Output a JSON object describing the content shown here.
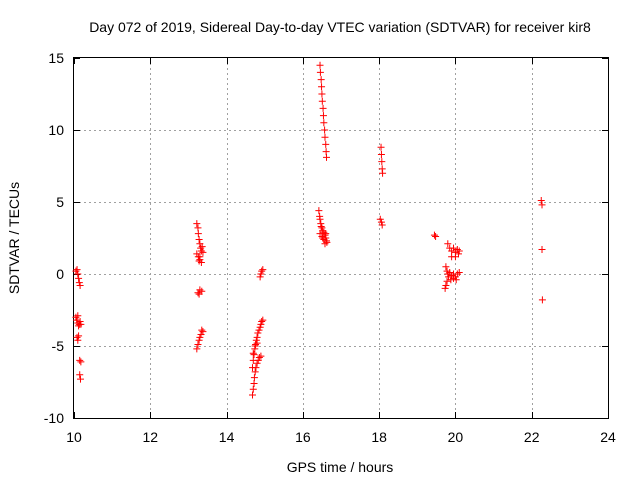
{
  "chart_data": {
    "type": "scatter",
    "title": "Day 072 of 2019, Sidereal Day-to-day VTEC variation (SDTVAR) for receiver kir8",
    "xlabel": "GPS time / hours",
    "ylabel": "SDTVAR / TECUs",
    "xlim": [
      10,
      24
    ],
    "ylim": [
      -10,
      15
    ],
    "xticks": [
      10,
      12,
      14,
      16,
      18,
      20,
      22,
      24
    ],
    "yticks": [
      -10,
      -5,
      0,
      5,
      10,
      15
    ],
    "xtick_labels": [
      "10",
      "12",
      "14",
      "16",
      "18",
      "20",
      "22",
      "24"
    ],
    "ytick_labels": [
      "-10",
      "-5",
      "0",
      "5",
      "10",
      "15"
    ],
    "grid": true,
    "marker": "+",
    "color": "#ff0000",
    "series": [
      {
        "name": "SDTVAR",
        "points": [
          [
            10.05,
            0.2
          ],
          [
            10.08,
            0.3
          ],
          [
            10.1,
            0.0
          ],
          [
            10.12,
            -0.3
          ],
          [
            10.14,
            -0.6
          ],
          [
            10.16,
            -0.8
          ],
          [
            10.05,
            -3.0
          ],
          [
            10.07,
            -3.2
          ],
          [
            10.1,
            -3.4
          ],
          [
            10.12,
            -3.6
          ],
          [
            10.14,
            -3.5
          ],
          [
            10.16,
            -3.3
          ],
          [
            10.18,
            -3.5
          ],
          [
            10.1,
            -2.9
          ],
          [
            10.08,
            -4.4
          ],
          [
            10.1,
            -4.6
          ],
          [
            10.12,
            -4.3
          ],
          [
            10.15,
            -6.0
          ],
          [
            10.18,
            -6.1
          ],
          [
            10.15,
            -7.0
          ],
          [
            10.17,
            -7.3
          ],
          [
            13.22,
            3.5
          ],
          [
            13.25,
            3.2
          ],
          [
            13.26,
            2.8
          ],
          [
            13.28,
            2.4
          ],
          [
            13.3,
            2.1
          ],
          [
            13.32,
            1.8
          ],
          [
            13.34,
            1.6
          ],
          [
            13.36,
            1.9
          ],
          [
            13.38,
            1.5
          ],
          [
            13.3,
            1.2
          ],
          [
            13.22,
            1.4
          ],
          [
            13.26,
            1.2
          ],
          [
            13.3,
            1.0
          ],
          [
            13.34,
            0.8
          ],
          [
            13.28,
            0.9
          ],
          [
            13.25,
            -1.3
          ],
          [
            13.3,
            -1.1
          ],
          [
            13.35,
            -1.2
          ],
          [
            13.28,
            -1.4
          ],
          [
            13.22,
            -5.2
          ],
          [
            13.25,
            -4.9
          ],
          [
            13.28,
            -4.6
          ],
          [
            13.3,
            -4.4
          ],
          [
            13.33,
            -4.2
          ],
          [
            13.35,
            -3.9
          ],
          [
            13.38,
            -4.0
          ],
          [
            14.68,
            -8.4
          ],
          [
            14.7,
            -8.0
          ],
          [
            14.72,
            -7.6
          ],
          [
            14.73,
            -7.2
          ],
          [
            14.75,
            -6.8
          ],
          [
            14.77,
            -6.5
          ],
          [
            14.8,
            -6.2
          ],
          [
            14.83,
            -6.0
          ],
          [
            14.86,
            -5.8
          ],
          [
            14.9,
            -5.7
          ],
          [
            14.68,
            -6.5
          ],
          [
            14.7,
            -6.0
          ],
          [
            14.72,
            -5.6
          ],
          [
            14.74,
            -5.2
          ],
          [
            14.76,
            -4.9
          ],
          [
            14.78,
            -4.6
          ],
          [
            14.8,
            -4.4
          ],
          [
            14.82,
            -4.1
          ],
          [
            14.85,
            -3.9
          ],
          [
            14.88,
            -3.7
          ],
          [
            14.9,
            -3.5
          ],
          [
            14.92,
            -3.3
          ],
          [
            14.95,
            -3.2
          ],
          [
            14.7,
            -5.5
          ],
          [
            14.75,
            -5.0
          ],
          [
            14.8,
            -4.8
          ],
          [
            14.88,
            -0.2
          ],
          [
            14.9,
            0.0
          ],
          [
            14.92,
            0.2
          ],
          [
            14.95,
            0.3
          ],
          [
            16.45,
            14.5
          ],
          [
            16.46,
            14.0
          ],
          [
            16.48,
            13.5
          ],
          [
            16.49,
            13.0
          ],
          [
            16.5,
            12.5
          ],
          [
            16.51,
            12.0
          ],
          [
            16.53,
            11.5
          ],
          [
            16.54,
            11.0
          ],
          [
            16.55,
            10.5
          ],
          [
            16.57,
            10.0
          ],
          [
            16.58,
            9.5
          ],
          [
            16.6,
            9.0
          ],
          [
            16.61,
            8.5
          ],
          [
            16.62,
            8.1
          ],
          [
            16.42,
            4.4
          ],
          [
            16.44,
            4.0
          ],
          [
            16.45,
            3.8
          ],
          [
            16.47,
            3.5
          ],
          [
            16.48,
            3.3
          ],
          [
            16.5,
            3.2
          ],
          [
            16.52,
            3.0
          ],
          [
            16.55,
            2.9
          ],
          [
            16.58,
            2.7
          ],
          [
            16.6,
            2.5
          ],
          [
            16.62,
            2.3
          ],
          [
            16.5,
            2.6
          ],
          [
            16.55,
            2.4
          ],
          [
            16.45,
            2.8
          ],
          [
            16.6,
            2.8
          ],
          [
            16.63,
            2.2
          ],
          [
            16.58,
            2.1
          ],
          [
            16.52,
            2.5
          ],
          [
            18.05,
            8.8
          ],
          [
            18.06,
            8.3
          ],
          [
            18.07,
            7.8
          ],
          [
            18.08,
            7.3
          ],
          [
            18.09,
            7.0
          ],
          [
            18.03,
            3.8
          ],
          [
            18.06,
            3.6
          ],
          [
            18.08,
            3.4
          ],
          [
            19.45,
            2.7
          ],
          [
            19.48,
            2.6
          ],
          [
            19.8,
            2.1
          ],
          [
            19.85,
            1.8
          ],
          [
            19.9,
            1.6
          ],
          [
            19.95,
            1.8
          ],
          [
            20.0,
            1.5
          ],
          [
            20.05,
            1.7
          ],
          [
            20.08,
            1.4
          ],
          [
            20.1,
            1.6
          ],
          [
            19.9,
            1.2
          ],
          [
            20.0,
            1.2
          ],
          [
            19.75,
            0.5
          ],
          [
            19.78,
            0.2
          ],
          [
            19.8,
            0.0
          ],
          [
            19.82,
            -0.2
          ],
          [
            19.78,
            -0.5
          ],
          [
            19.75,
            -0.8
          ],
          [
            19.73,
            -1.0
          ],
          [
            19.85,
            0.1
          ],
          [
            19.9,
            -0.1
          ],
          [
            19.95,
            0.0
          ],
          [
            20.0,
            -0.2
          ],
          [
            20.05,
            0.0
          ],
          [
            20.1,
            0.1
          ],
          [
            19.88,
            -0.4
          ],
          [
            19.95,
            -0.3
          ],
          [
            20.02,
            -0.4
          ],
          [
            22.25,
            5.1
          ],
          [
            22.27,
            4.8
          ],
          [
            22.27,
            1.7
          ],
          [
            22.28,
            -1.8
          ]
        ]
      }
    ]
  }
}
